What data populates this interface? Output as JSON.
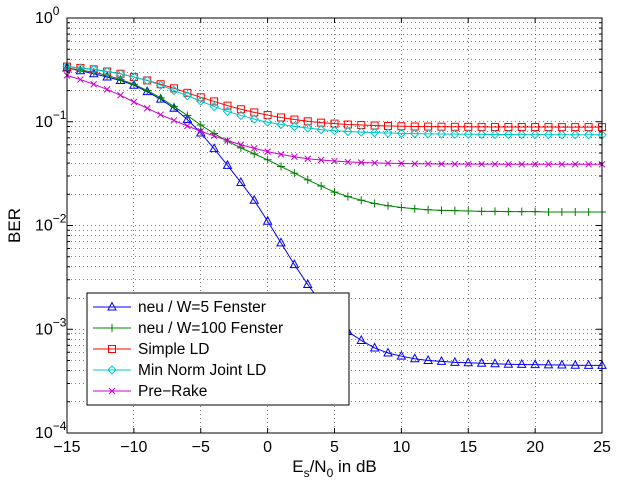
{
  "chart_data": {
    "type": "line",
    "xlabel": {
      "main": "E",
      "sub1": "s",
      "mid": "/N",
      "sub2": "0",
      "tail": " in dB"
    },
    "ylabel": "BER",
    "xlim": [
      -15,
      25
    ],
    "ylim": [
      0.0001,
      1
    ],
    "yscale": "log",
    "grid": true,
    "x_ticks": [
      -15,
      -10,
      -5,
      0,
      5,
      10,
      15,
      20,
      25
    ],
    "x_tick_labels": [
      "−15",
      "−10",
      "−5",
      "0",
      "5",
      "10",
      "15",
      "20",
      "25"
    ],
    "y_ticks": [
      {
        "value": 0.0001,
        "base": "10",
        "exp": "−4"
      },
      {
        "value": 0.001,
        "base": "10",
        "exp": "−3"
      },
      {
        "value": 0.01,
        "base": "10",
        "exp": "−2"
      },
      {
        "value": 0.1,
        "base": "10",
        "exp": "−1"
      },
      {
        "value": 1,
        "base": "10",
        "exp": "0"
      }
    ],
    "legend_position": "bottom-left",
    "x": [
      -15,
      -14,
      -13,
      -12,
      -11,
      -10,
      -9,
      -8,
      -7,
      -6,
      -5,
      -4,
      -3,
      -2,
      -1,
      0,
      1,
      2,
      3,
      4,
      5,
      6,
      7,
      8,
      9,
      10,
      11,
      12,
      13,
      14,
      15,
      16,
      17,
      18,
      19,
      20,
      21,
      22,
      23,
      24,
      25
    ],
    "series": [
      {
        "name": "neu / W=5 Fenster",
        "color": "#0000ff",
        "marker": "triangle",
        "values": [
          0.33,
          0.31,
          0.29,
          0.27,
          0.25,
          0.225,
          0.195,
          0.165,
          0.135,
          0.105,
          0.078,
          0.055,
          0.038,
          0.026,
          0.0175,
          0.011,
          0.0068,
          0.0042,
          0.0027,
          0.0018,
          0.00125,
          0.00095,
          0.00078,
          0.00066,
          0.00059,
          0.00055,
          0.00052,
          0.0005,
          0.00049,
          0.00048,
          0.000475,
          0.00047,
          0.000465,
          0.00046,
          0.000458,
          0.000456,
          0.000454,
          0.000452,
          0.00045,
          0.000449,
          0.000448
        ]
      },
      {
        "name": "neu / W=100 Fenster",
        "color": "#008000",
        "marker": "plus",
        "values": [
          0.33,
          0.315,
          0.3,
          0.28,
          0.255,
          0.23,
          0.2,
          0.17,
          0.14,
          0.115,
          0.093,
          0.077,
          0.065,
          0.056,
          0.049,
          0.043,
          0.037,
          0.032,
          0.0275,
          0.024,
          0.021,
          0.019,
          0.0175,
          0.0163,
          0.0155,
          0.0149,
          0.0145,
          0.0142,
          0.014,
          0.0139,
          0.0138,
          0.0137,
          0.0137,
          0.0136,
          0.0136,
          0.0136,
          0.0135,
          0.0135,
          0.0135,
          0.0135,
          0.0135
        ]
      },
      {
        "name": "Simple LD",
        "color": "#ff0000",
        "marker": "square",
        "values": [
          0.34,
          0.33,
          0.32,
          0.305,
          0.29,
          0.27,
          0.25,
          0.23,
          0.21,
          0.19,
          0.172,
          0.157,
          0.143,
          0.132,
          0.123,
          0.116,
          0.11,
          0.105,
          0.101,
          0.098,
          0.096,
          0.094,
          0.093,
          0.092,
          0.091,
          0.0905,
          0.09,
          0.0898,
          0.0896,
          0.0894,
          0.0893,
          0.0892,
          0.0891,
          0.089,
          0.089,
          0.0889,
          0.0889,
          0.0888,
          0.0888,
          0.0888,
          0.0888
        ]
      },
      {
        "name": "Min Norm Joint LD",
        "color": "#00c8c8",
        "marker": "diamond",
        "values": [
          0.34,
          0.33,
          0.32,
          0.305,
          0.29,
          0.27,
          0.25,
          0.225,
          0.2,
          0.178,
          0.158,
          0.14,
          0.126,
          0.115,
          0.106,
          0.099,
          0.094,
          0.09,
          0.087,
          0.084,
          0.082,
          0.0805,
          0.0795,
          0.0785,
          0.0778,
          0.0772,
          0.0768,
          0.0764,
          0.0761,
          0.0759,
          0.0757,
          0.0755,
          0.0754,
          0.0753,
          0.0752,
          0.0751,
          0.0751,
          0.075,
          0.075,
          0.075,
          0.075
        ]
      },
      {
        "name": "Pre−Rake",
        "color": "#cc00cc",
        "marker": "x",
        "values": [
          0.28,
          0.255,
          0.23,
          0.205,
          0.18,
          0.155,
          0.135,
          0.117,
          0.103,
          0.091,
          0.081,
          0.073,
          0.066,
          0.06,
          0.0555,
          0.0515,
          0.0485,
          0.046,
          0.044,
          0.0428,
          0.0418,
          0.041,
          0.0405,
          0.0401,
          0.0398,
          0.0396,
          0.0394,
          0.0393,
          0.0392,
          0.0391,
          0.039,
          0.039,
          0.039,
          0.0389,
          0.0389,
          0.0389,
          0.0389,
          0.0389,
          0.0389,
          0.0389,
          0.0389
        ]
      }
    ]
  }
}
